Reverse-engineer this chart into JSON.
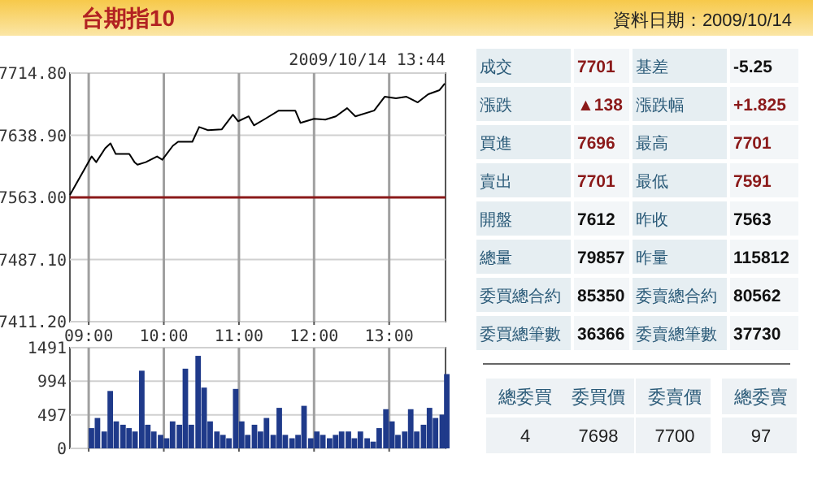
{
  "chart_data": [
    {
      "type": "line",
      "title": "台期指10",
      "annotations": [
        "2009/10/14 13:44"
      ],
      "x": [
        8.75,
        9.04,
        9.1,
        9.22,
        9.29,
        9.36,
        9.54,
        9.61,
        9.65,
        9.76,
        9.91,
        9.98,
        10.12,
        10.19,
        10.38,
        10.47,
        10.59,
        10.77,
        10.92,
        10.99,
        11.13,
        11.2,
        11.35,
        11.53,
        11.75,
        11.82,
        12.0,
        12.15,
        12.29,
        12.44,
        12.55,
        12.8,
        12.94,
        13.09,
        13.23,
        13.38,
        13.52,
        13.67,
        13.74
      ],
      "values": [
        7566,
        7613,
        7606,
        7623,
        7629,
        7616,
        7616,
        7606,
        7603,
        7606,
        7613,
        7609,
        7626,
        7631,
        7631,
        7649,
        7645,
        7646,
        7664,
        7656,
        7662,
        7651,
        7659,
        7669,
        7669,
        7654,
        7659,
        7658,
        7662,
        7672,
        7662,
        7669,
        7686,
        7684,
        7686,
        7679,
        7689,
        7694,
        7702
      ],
      "color": "#000000",
      "xlim": [
        8.75,
        13.75
      ],
      "xticks": [
        {
          "value": 9,
          "label": "09:00"
        },
        {
          "value": 10,
          "label": "10:00"
        },
        {
          "value": 11,
          "label": "11:00"
        },
        {
          "value": 12,
          "label": "12:00"
        },
        {
          "value": 13,
          "label": "13:00"
        }
      ],
      "ylim": [
        7411.2,
        7714.8
      ],
      "yticks": [
        {
          "value": 7411.2,
          "label": "7411.20"
        },
        {
          "value": 7487.1,
          "label": "7487.10"
        },
        {
          "value": 7563,
          "label": "7563.00"
        },
        {
          "value": 7638.9,
          "label": "7638.90"
        },
        {
          "value": 7714.8,
          "label": "7714.80"
        }
      ],
      "grid": true,
      "ref_lines": [
        {
          "axis": "y",
          "value": 7563,
          "color": "#8b1a1a"
        }
      ]
    },
    {
      "type": "bar",
      "x": [
        9.0,
        9.08,
        9.17,
        9.25,
        9.33,
        9.42,
        9.5,
        9.58,
        9.67,
        9.75,
        9.83,
        9.92,
        10.0,
        10.08,
        10.17,
        10.25,
        10.33,
        10.42,
        10.5,
        10.58,
        10.67,
        10.75,
        10.83,
        10.92,
        11.0,
        11.08,
        11.17,
        11.25,
        11.33,
        11.42,
        11.5,
        11.58,
        11.67,
        11.75,
        11.83,
        11.92,
        12.0,
        12.08,
        12.17,
        12.25,
        12.33,
        12.42,
        12.5,
        12.58,
        12.67,
        12.75,
        12.83,
        12.92,
        13.0,
        13.08,
        13.17,
        13.25,
        13.33,
        13.42,
        13.5,
        13.58,
        13.67,
        13.73
      ],
      "values": [
        300,
        450,
        250,
        850,
        400,
        350,
        300,
        250,
        1150,
        350,
        250,
        200,
        150,
        400,
        350,
        1180,
        350,
        1370,
        900,
        400,
        250,
        200,
        150,
        880,
        400,
        200,
        350,
        250,
        450,
        200,
        600,
        200,
        150,
        200,
        630,
        150,
        250,
        200,
        150,
        200,
        250,
        250,
        150,
        250,
        150,
        100,
        300,
        580,
        400,
        200,
        250,
        580,
        250,
        350,
        600,
        450,
        500,
        1100
      ],
      "color": "#1f3a8a",
      "xlim": [
        8.75,
        13.75
      ],
      "xticks": [
        {
          "value": 9,
          "label": null
        },
        {
          "value": 10,
          "label": null
        },
        {
          "value": 11,
          "label": null
        },
        {
          "value": 12,
          "label": null
        },
        {
          "value": 13,
          "label": null
        }
      ],
      "ylim": [
        0,
        1491
      ],
      "yticks": [
        0,
        497,
        994,
        1491
      ],
      "grid": true,
      "tick_labels": "y"
    },
    {
      "type": "other",
      "title": "資料日期：2009/10/14",
      "annotations": [
        "成交",
        "7701",
        "基差",
        "-5.25",
        "漲跌",
        "▲138",
        "漲跌幅",
        "+1.825",
        "買進",
        "7696",
        "最高",
        "7701",
        "賣出",
        "7701",
        "最低",
        "7591",
        "開盤",
        "7612",
        "昨收",
        "7563",
        "總量",
        "79857",
        "昨量",
        "115812",
        "委買總合約",
        "85350",
        "委賣總合約",
        "80562",
        "委買總筆數",
        "36366",
        "委賣總筆數",
        "37730",
        "總委買",
        "委買價",
        "委賣價",
        "總委賣",
        "4",
        "7698",
        "7700",
        "97"
      ]
    }
  ]
}
